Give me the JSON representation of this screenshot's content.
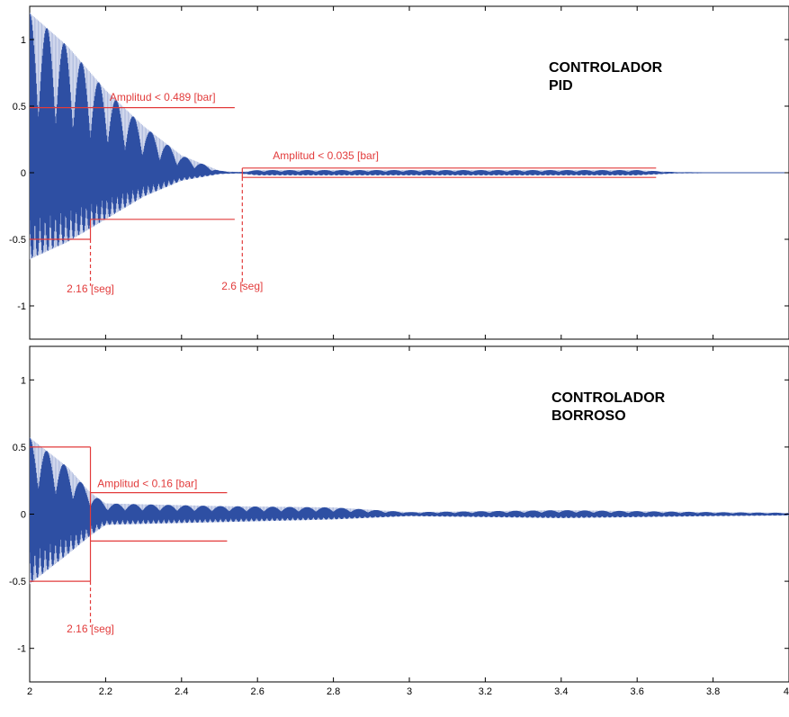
{
  "chart_data": [
    {
      "type": "line",
      "title": "CONTROLADOR\nPID",
      "title_lines": [
        "CONTROLADOR",
        "PID"
      ],
      "xlim": [
        2,
        4
      ],
      "ylim": [
        -1.25,
        1.25
      ],
      "xticks": [
        2,
        2.2,
        2.4,
        2.6,
        2.8,
        3,
        3.2,
        3.4,
        3.6,
        3.8,
        4
      ],
      "yticks": [
        -1,
        -0.5,
        0,
        0.5,
        1
      ],
      "ytick_labels": [
        "-1",
        "-0.5",
        "0",
        "0.5",
        "1"
      ],
      "grid": false,
      "series": [
        {
          "color": "#2e4fa3",
          "description_points": [
            {
              "x": 2.0,
              "upper": 1.2,
              "lower": -0.65
            },
            {
              "x": 2.1,
              "upper": 0.95,
              "lower": -0.52
            },
            {
              "x": 2.2,
              "upper": 0.62,
              "lower": -0.35
            },
            {
              "x": 2.3,
              "upper": 0.35,
              "lower": -0.18
            },
            {
              "x": 2.4,
              "upper": 0.13,
              "lower": -0.06
            },
            {
              "x": 2.5,
              "upper": 0.015,
              "lower": -0.01
            },
            {
              "x": 2.55,
              "upper": 0.005,
              "lower": -0.005
            },
            {
              "x": 2.6,
              "upper": 0.02,
              "lower": -0.02
            },
            {
              "x": 3.0,
              "upper": 0.02,
              "lower": -0.02
            },
            {
              "x": 3.6,
              "upper": 0.02,
              "lower": -0.02
            },
            {
              "x": 3.7,
              "upper": 0.005,
              "lower": -0.005
            },
            {
              "x": 4.0,
              "upper": 0.0,
              "lower": 0.0
            }
          ]
        }
      ],
      "annotations": [
        {
          "text": "Amplitud < 0.489 [bar]",
          "x": 2.35,
          "y": 0.54
        },
        {
          "text": "Amplitud < 0.035 [bar]",
          "x": 2.78,
          "y": 0.1
        },
        {
          "text": "2.16 [seg]",
          "x": 2.16,
          "y": -0.9
        },
        {
          "text": "2.6 [seg]",
          "x": 2.56,
          "y": -0.88
        }
      ],
      "reference_lines": [
        {
          "x1": 2.0,
          "x2": 2.54,
          "y": 0.489
        },
        {
          "x1": 2.0,
          "x2": 2.16,
          "y": -0.5
        },
        {
          "x1": 2.16,
          "x2": 2.54,
          "y": -0.35
        },
        {
          "x1": 2.56,
          "x2": 3.65,
          "y": 0.035
        },
        {
          "x1": 2.56,
          "x2": 3.65,
          "y": -0.035
        }
      ],
      "vertical_guides": [
        {
          "x": 2.16,
          "y1": -0.5,
          "y2": -0.35
        },
        {
          "x": 2.56,
          "y1": -0.035,
          "y2": 0.035
        }
      ],
      "dashed_markers": [
        {
          "x": 2.16,
          "y_from": -0.5,
          "y_to": -0.85
        },
        {
          "x": 2.56,
          "y_from": -0.035,
          "y_to": -0.85
        }
      ]
    },
    {
      "type": "line",
      "title": "CONTROLADOR\nBORROSO",
      "title_lines": [
        "CONTROLADOR",
        "BORROSO"
      ],
      "xlim": [
        2,
        4
      ],
      "ylim": [
        -1.25,
        1.25
      ],
      "xticks": [
        2,
        2.2,
        2.4,
        2.6,
        2.8,
        3,
        3.2,
        3.4,
        3.6,
        3.8,
        4
      ],
      "xtick_labels": [
        "2",
        "2.2",
        "2.4",
        "2.6",
        "2.8",
        "3",
        "3.2",
        "3.4",
        "3.6",
        "3.8",
        "4"
      ],
      "yticks": [
        -1,
        -0.5,
        0,
        0.5,
        1
      ],
      "ytick_labels": [
        "-1",
        "-0.5",
        "0",
        "0.5",
        "1"
      ],
      "grid": false,
      "series": [
        {
          "color": "#2e4fa3",
          "description_points": [
            {
              "x": 2.0,
              "upper": 0.57,
              "lower": -0.52
            },
            {
              "x": 2.1,
              "upper": 0.35,
              "lower": -0.3
            },
            {
              "x": 2.16,
              "upper": 0.16,
              "lower": -0.16
            },
            {
              "x": 2.2,
              "upper": 0.08,
              "lower": -0.08
            },
            {
              "x": 2.5,
              "upper": 0.06,
              "lower": -0.06
            },
            {
              "x": 2.8,
              "upper": 0.05,
              "lower": -0.04
            },
            {
              "x": 3.0,
              "upper": 0.015,
              "lower": -0.015
            },
            {
              "x": 3.4,
              "upper": 0.03,
              "lower": -0.03
            },
            {
              "x": 3.8,
              "upper": 0.015,
              "lower": -0.015
            },
            {
              "x": 4.0,
              "upper": 0.01,
              "lower": -0.01
            }
          ]
        }
      ],
      "annotations": [
        {
          "text": "Amplitud < 0.16 [bar]",
          "x": 2.31,
          "y": 0.2
        },
        {
          "text": "2.16 [seg]",
          "x": 2.16,
          "y": -0.88
        }
      ],
      "reference_lines": [
        {
          "x1": 2.0,
          "x2": 2.16,
          "y": 0.5
        },
        {
          "x1": 2.0,
          "x2": 2.16,
          "y": -0.5
        },
        {
          "x1": 2.16,
          "x2": 2.52,
          "y": 0.16
        },
        {
          "x1": 2.16,
          "x2": 2.52,
          "y": -0.2
        }
      ],
      "vertical_guides": [
        {
          "x": 2.16,
          "y1": -0.5,
          "y2": 0.5
        }
      ],
      "dashed_markers": [
        {
          "x": 2.16,
          "y_from": -0.5,
          "y_to": -0.84
        }
      ]
    }
  ],
  "colors": {
    "signal": "#2e4fa3",
    "annotation": "#e23b3b",
    "axes": "#000000"
  }
}
